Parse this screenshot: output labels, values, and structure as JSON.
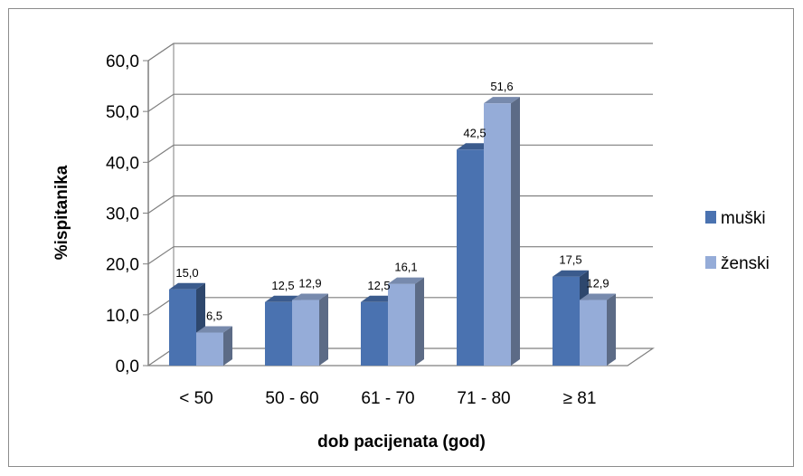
{
  "chart_data": {
    "type": "bar",
    "categories": [
      "< 50",
      "50 - 60",
      "61 - 70",
      "71 - 80",
      "≥ 81"
    ],
    "series": [
      {
        "name": "muški",
        "values": [
          15.0,
          12.5,
          12.5,
          42.5,
          17.5
        ],
        "labels": [
          "15,0",
          "12,5",
          "12,5",
          "42,5",
          "17,5"
        ],
        "color": "#4a72b0"
      },
      {
        "name": "ženski",
        "values": [
          6.5,
          12.9,
          16.1,
          51.6,
          12.9
        ],
        "labels": [
          "6,5",
          "12,9",
          "16,1",
          "51,6",
          "12,9"
        ],
        "color": "#95acd8"
      }
    ],
    "ylim": [
      0,
      60
    ],
    "yticks": [
      "0,0",
      "10,0",
      "20,0",
      "30,0",
      "40,0",
      "50,0",
      "60,0"
    ],
    "xlabel": "dob pacijenata (god)",
    "ylabel": "%ispitanika",
    "grid": true,
    "legend_position": "right",
    "style": "3d-clustered-column"
  }
}
